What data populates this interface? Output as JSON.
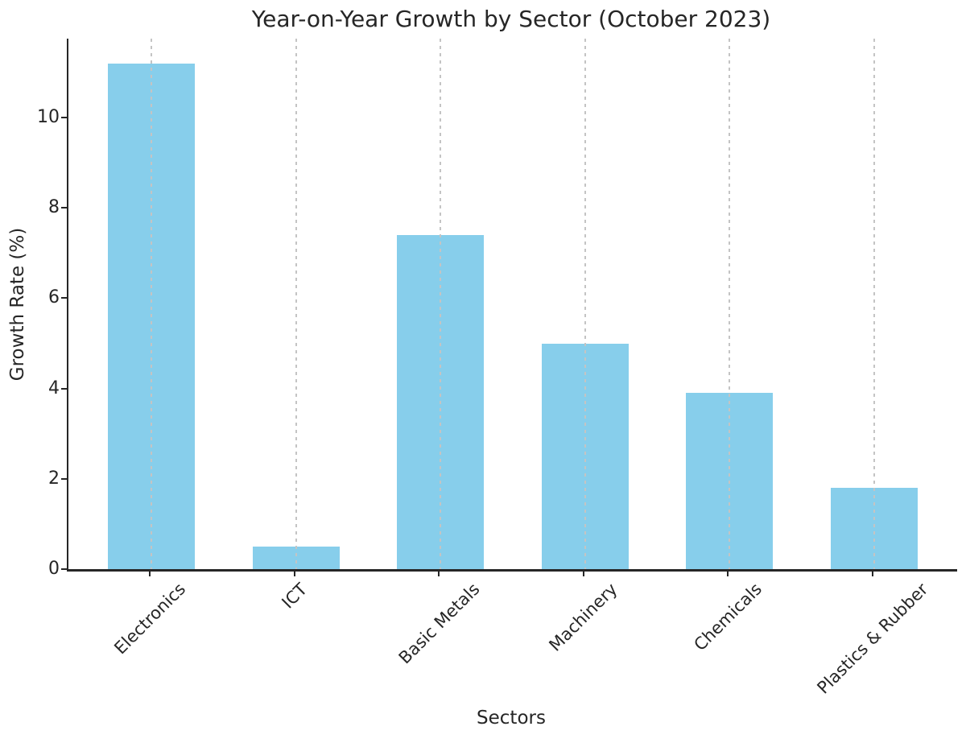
{
  "chart_data": {
    "type": "bar",
    "title": "Year-on-Year Growth by Sector (October 2023)",
    "xlabel": "Sectors",
    "ylabel": "Growth Rate (%)",
    "categories": [
      "Electronics",
      "ICT",
      "Basic Metals",
      "Machinery",
      "Chemicals",
      "Plastics & Rubber"
    ],
    "values": [
      11.2,
      0.5,
      7.4,
      5.0,
      3.9,
      1.8
    ],
    "yticks": [
      0,
      2,
      4,
      6,
      8,
      10
    ],
    "ylim": [
      0,
      11.75
    ],
    "xtick_rotation_deg": 45,
    "grid": "vertical-dashed",
    "legend": "none",
    "bar_color": "#87CEEB",
    "grid_color": "#c4c4c4",
    "axis_color": "#262626",
    "text_color": "#262626"
  }
}
